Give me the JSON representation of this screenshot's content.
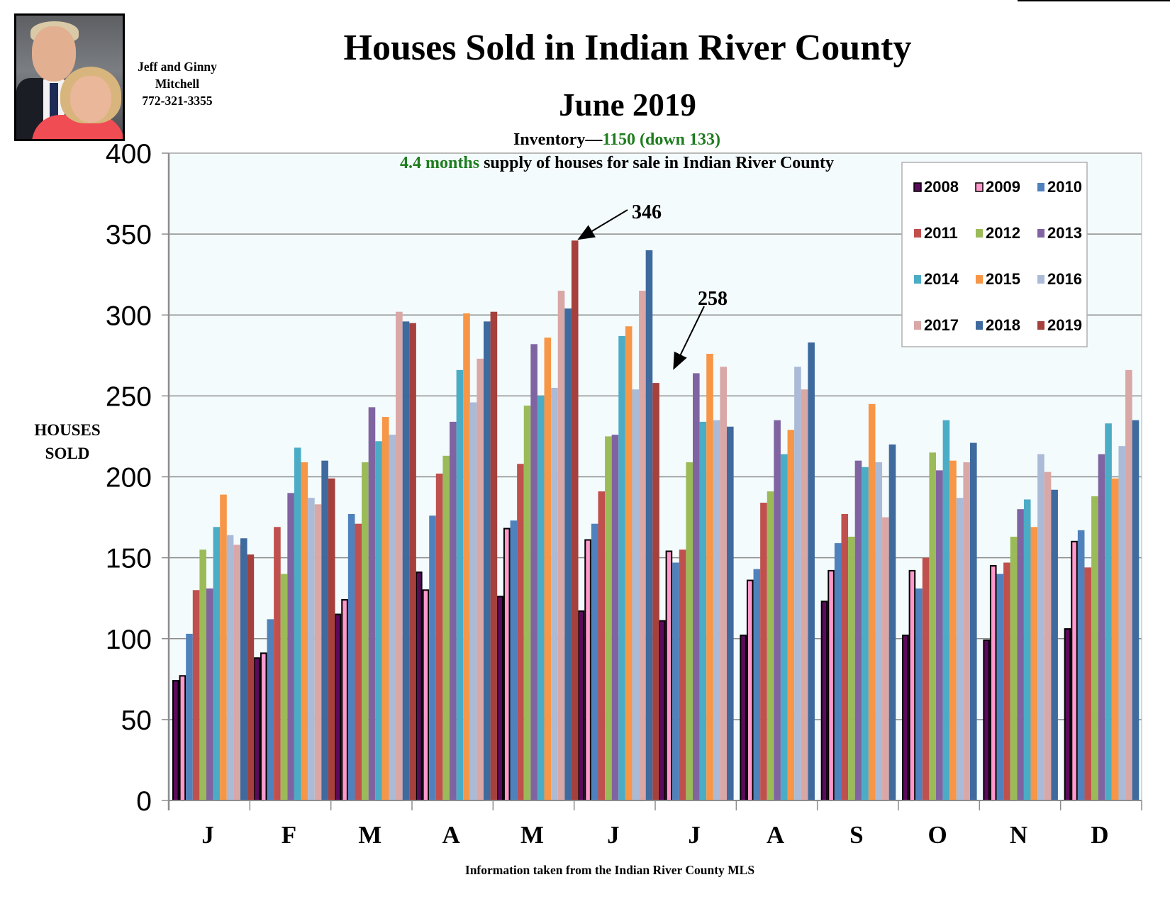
{
  "header": {
    "title": "Houses Sold in Indian River County",
    "subtitle": "June 2019",
    "inventory_label": "Inventory—",
    "inventory_value": "1150 (down 133)",
    "supply_value": "4.4 months",
    "supply_rest": " supply of houses for sale in Indian River County"
  },
  "contact": {
    "line1": "Jeff and Ginny",
    "line2": "Mitchell",
    "phone": "772-321-3355",
    "photo": "agents-portrait-photo"
  },
  "footer": "Information taken from the Indian River County MLS",
  "colors": {
    "plot_bg": "#f4fbfc",
    "annotation_green": "#1e7d1e"
  },
  "chart_data": {
    "type": "bar",
    "title": "Houses Sold in Indian River County",
    "subtitle": "June 2019",
    "xlabel": "",
    "ylabel": "HOUSES SOLD",
    "ylim": [
      0,
      400
    ],
    "yticks": [
      0,
      50,
      100,
      150,
      200,
      250,
      300,
      350,
      400
    ],
    "grid": true,
    "legend_position": "top-right",
    "categories": [
      "J",
      "F",
      "M",
      "A",
      "M",
      "J",
      "J",
      "A",
      "S",
      "O",
      "N",
      "D"
    ],
    "series": [
      {
        "name": "2008",
        "color": "#5c0a5c",
        "outlined": true,
        "values": [
          74,
          88,
          115,
          141,
          126,
          117,
          111,
          102,
          123,
          102,
          99,
          106
        ]
      },
      {
        "name": "2009",
        "color": "#ff99cc",
        "outlined": true,
        "values": [
          77,
          91,
          124,
          130,
          168,
          161,
          154,
          136,
          142,
          142,
          145,
          160
        ]
      },
      {
        "name": "2010",
        "color": "#4f81bd",
        "outlined": false,
        "values": [
          103,
          112,
          177,
          176,
          173,
          171,
          147,
          143,
          159,
          131,
          140,
          167
        ]
      },
      {
        "name": "2011",
        "color": "#c0504d",
        "outlined": false,
        "values": [
          130,
          169,
          171,
          202,
          208,
          191,
          155,
          184,
          177,
          150,
          147,
          144
        ]
      },
      {
        "name": "2012",
        "color": "#9bbb59",
        "outlined": false,
        "values": [
          155,
          140,
          209,
          213,
          244,
          225,
          209,
          191,
          163,
          215,
          163,
          188
        ]
      },
      {
        "name": "2013",
        "color": "#8064a2",
        "outlined": false,
        "values": [
          131,
          190,
          243,
          234,
          282,
          226,
          264,
          235,
          210,
          204,
          180,
          214
        ]
      },
      {
        "name": "2014",
        "color": "#4bacc6",
        "outlined": false,
        "values": [
          169,
          218,
          222,
          266,
          250,
          287,
          234,
          214,
          206,
          235,
          186,
          233
        ]
      },
      {
        "name": "2015",
        "color": "#f79646",
        "outlined": false,
        "values": [
          189,
          209,
          237,
          301,
          286,
          293,
          276,
          229,
          245,
          210,
          169,
          199
        ]
      },
      {
        "name": "2016",
        "color": "#aabad7",
        "outlined": false,
        "values": [
          164,
          187,
          226,
          246,
          255,
          254,
          235,
          268,
          209,
          187,
          214,
          219
        ]
      },
      {
        "name": "2017",
        "color": "#d9a7a6",
        "outlined": false,
        "values": [
          158,
          183,
          302,
          273,
          315,
          315,
          268,
          254,
          175,
          209,
          203,
          266
        ]
      },
      {
        "name": "2018",
        "color": "#3e6a9e",
        "outlined": false,
        "values": [
          162,
          210,
          296,
          296,
          304,
          340,
          231,
          283,
          220,
          221,
          192,
          235
        ]
      },
      {
        "name": "2019",
        "color": "#a5403c",
        "outlined": false,
        "values": [
          152,
          199,
          295,
          302,
          346,
          258,
          null,
          null,
          null,
          null,
          null,
          null
        ]
      }
    ],
    "annotations": [
      {
        "text": "346",
        "points_to": {
          "category_index": 4,
          "series": "2019",
          "value": 346
        }
      },
      {
        "text": "258",
        "points_to": {
          "category_index": 5,
          "series": "2019",
          "value": 258
        }
      }
    ]
  }
}
